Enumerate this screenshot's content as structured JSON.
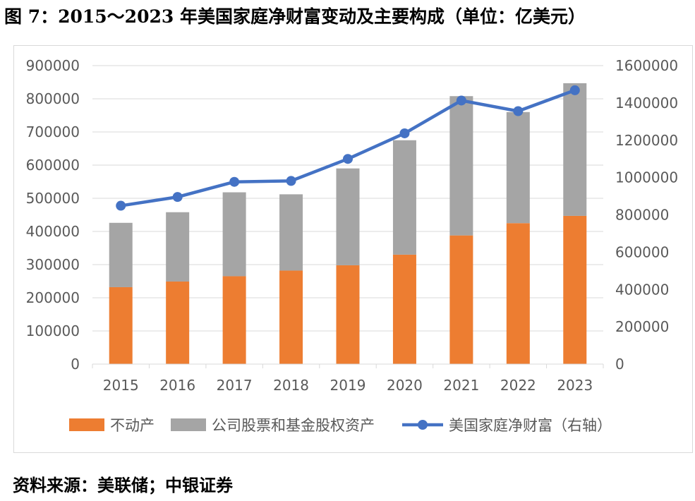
{
  "figure_title": "图 7：2015～2023 年美国家庭净财富变动及主要构成（单位：亿美元）",
  "source_note": "资料来源：美联储；中银证券",
  "colors": {
    "real_estate": "#ed7d31",
    "equity": "#a5a5a5",
    "net_worth": "#4472c4",
    "grid": "#d9d9d9",
    "text": "#595959"
  },
  "chart_data": {
    "type": "bar",
    "stacked": true,
    "categories": [
      "2015",
      "2016",
      "2017",
      "2018",
      "2019",
      "2020",
      "2021",
      "2022",
      "2023"
    ],
    "series": [
      {
        "name": "不动产",
        "axis": "left",
        "kind": "bar",
        "values": [
          232000,
          249000,
          265000,
          282000,
          298000,
          330000,
          388000,
          425000,
          447000
        ]
      },
      {
        "name": "公司股票和基金股权资产",
        "axis": "left",
        "kind": "bar",
        "values": [
          194000,
          209000,
          253000,
          230000,
          292000,
          345000,
          420000,
          335000,
          400000
        ]
      },
      {
        "name": "美国家庭净财富（右轴）",
        "axis": "right",
        "kind": "line",
        "values": [
          849000,
          896000,
          977000,
          982000,
          1100000,
          1237000,
          1413000,
          1356000,
          1468000
        ]
      }
    ],
    "ylim_left": [
      0,
      900000
    ],
    "ylim_right": [
      0,
      1600000
    ],
    "yticks_left": [
      "0",
      "100000",
      "200000",
      "300000",
      "400000",
      "500000",
      "600000",
      "700000",
      "800000",
      "900000"
    ],
    "yticks_right": [
      "0",
      "200000",
      "400000",
      "600000",
      "800000",
      "1000000",
      "1200000",
      "1400000",
      "1600000"
    ],
    "grid": true,
    "legend_position": "bottom"
  }
}
